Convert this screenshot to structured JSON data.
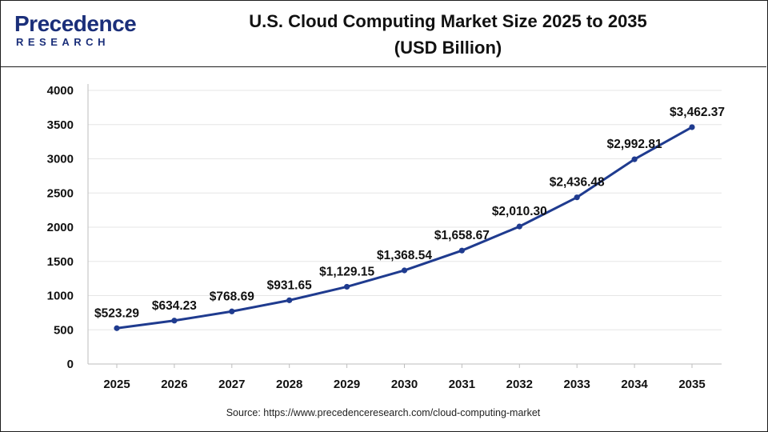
{
  "brand": {
    "name": "Precedence",
    "subname": "RESEARCH",
    "color": "#1b2f7a",
    "icon": "logo-p-icon"
  },
  "header": {
    "title_line1": "U.S. Cloud Computing Market Size 2025 to 2035",
    "title_line2": "(USD Billion)"
  },
  "footer": {
    "source": "Source: https://www.precedenceresearch.com/cloud-computing-market"
  },
  "chart_data": {
    "type": "line",
    "title": "U.S. Cloud Computing Market Size 2025 to 2035 (USD Billion)",
    "xlabel": "",
    "ylabel": "",
    "categories": [
      "2025",
      "2026",
      "2027",
      "2028",
      "2029",
      "2030",
      "2031",
      "2032",
      "2033",
      "2034",
      "2035"
    ],
    "series": [
      {
        "values": [
          523.29,
          634.23,
          768.69,
          931.65,
          1129.15,
          1368.54,
          1658.67,
          2010.3,
          2436.48,
          2992.81,
          3462.37
        ],
        "labels": [
          "$523.29",
          "$634.23",
          "$768.69",
          "$931.65",
          "$1,129.15",
          "$1,368.54",
          "$1,658.67",
          "$2,010.30",
          "$2,436.48",
          "$2,992.81",
          "$3,462.37"
        ],
        "color": "#1f3b8f"
      }
    ],
    "ylim": [
      0,
      4000
    ],
    "yticks": [
      "0",
      "500",
      "1000",
      "1500",
      "2000",
      "2500",
      "3000",
      "3500",
      "4000"
    ],
    "grid": true,
    "legend": "none"
  }
}
